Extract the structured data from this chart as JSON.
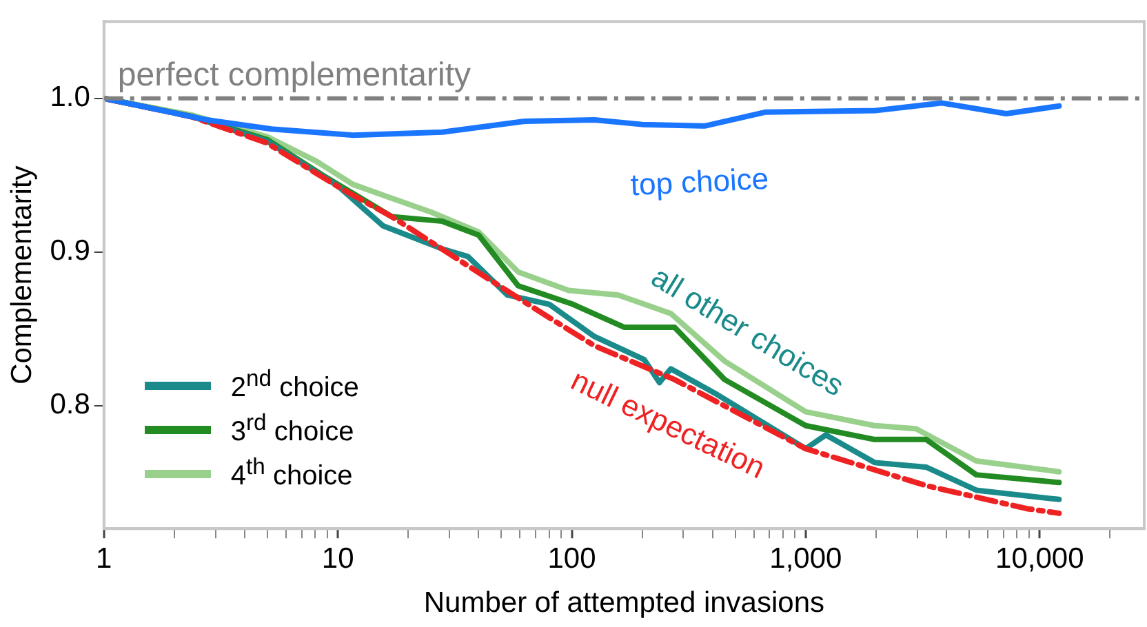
{
  "chart_data": {
    "type": "line",
    "xlabel": "Number of attempted invasions",
    "ylabel": "Complementarity",
    "log": "x",
    "grid": false,
    "marker": "none",
    "legend": "bottom left",
    "xlim": [
      1,
      28000
    ],
    "ylim": [
      0.72,
      1.05
    ],
    "xticks": [
      {
        "value": 1,
        "label": "1"
      },
      {
        "value": 2,
        "label": null
      },
      {
        "value": 3,
        "label": null
      },
      {
        "value": 4,
        "label": null
      },
      {
        "value": 5,
        "label": null
      },
      {
        "value": 6,
        "label": null
      },
      {
        "value": 7,
        "label": null
      },
      {
        "value": 8,
        "label": null
      },
      {
        "value": 9,
        "label": null
      },
      {
        "value": 10,
        "label": "10"
      },
      {
        "value": 20,
        "label": null
      },
      {
        "value": 30,
        "label": null
      },
      {
        "value": 40,
        "label": null
      },
      {
        "value": 50,
        "label": null
      },
      {
        "value": 60,
        "label": null
      },
      {
        "value": 70,
        "label": null
      },
      {
        "value": 80,
        "label": null
      },
      {
        "value": 90,
        "label": null
      },
      {
        "value": 100,
        "label": "100"
      },
      {
        "value": 200,
        "label": null
      },
      {
        "value": 300,
        "label": null
      },
      {
        "value": 400,
        "label": null
      },
      {
        "value": 500,
        "label": null
      },
      {
        "value": 600,
        "label": null
      },
      {
        "value": 700,
        "label": null
      },
      {
        "value": 800,
        "label": null
      },
      {
        "value": 900,
        "label": null
      },
      {
        "value": 1000,
        "label": "1,000"
      },
      {
        "value": 2000,
        "label": null
      },
      {
        "value": 3000,
        "label": null
      },
      {
        "value": 4000,
        "label": null
      },
      {
        "value": 5000,
        "label": null
      },
      {
        "value": 6000,
        "label": null
      },
      {
        "value": 7000,
        "label": null
      },
      {
        "value": 8000,
        "label": null
      },
      {
        "value": 9000,
        "label": null
      },
      {
        "value": 10000,
        "label": "10,000"
      },
      {
        "value": 20000,
        "label": null
      }
    ],
    "yticks": [
      {
        "value": 0.8,
        "label": "0.8"
      },
      {
        "value": 0.9,
        "label": "0.9"
      },
      {
        "value": 1.0,
        "label": "1.0"
      }
    ],
    "ref_lines": [
      {
        "axis": "y",
        "value": 1.0,
        "label": "perfect complementarity",
        "color": "#808080",
        "line_style": "dashed"
      }
    ],
    "annotations": [
      "all other choices"
    ],
    "series": [
      {
        "name": "top choice",
        "color": "#1a75ff",
        "x": [
          1,
          2.75,
          5.2,
          11.6,
          28,
          62,
          125,
          200,
          370,
          670,
          1970,
          3800,
          7200,
          12100
        ],
        "values": [
          1.0,
          0.986,
          0.98,
          0.976,
          0.978,
          0.985,
          0.986,
          0.983,
          0.982,
          0.991,
          0.992,
          0.997,
          0.99,
          0.995
        ]
      },
      {
        "name": "null expectation",
        "color": "#ee2222",
        "line_style": "dashed",
        "x": [
          1,
          2.37,
          4.97,
          10.4,
          17,
          36,
          75,
          125,
          275,
          1000,
          3270,
          8800,
          12100
        ],
        "values": [
          1.0,
          0.988,
          0.971,
          0.941,
          0.923,
          0.891,
          0.86,
          0.839,
          0.817,
          0.772,
          0.748,
          0.733,
          0.73
        ]
      },
      {
        "name": "2$^{nd}$ choice",
        "color": "#1a8a8a",
        "x": [
          1,
          2.4,
          5,
          10,
          15.6,
          28,
          36,
          53,
          80,
          125,
          204,
          237,
          265,
          410,
          1000,
          1220,
          1970,
          3270,
          5360,
          12100
        ],
        "values": [
          1.0,
          0.988,
          0.972,
          0.943,
          0.917,
          0.902,
          0.897,
          0.872,
          0.866,
          0.845,
          0.83,
          0.815,
          0.824,
          0.808,
          0.772,
          0.781,
          0.763,
          0.76,
          0.745,
          0.739
        ]
      },
      {
        "name": "3$^{rd}$ choice",
        "color": "#228b22",
        "x": [
          1,
          2.4,
          5,
          8.6,
          17,
          28,
          40,
          59,
          101,
          168,
          275,
          450,
          1000,
          1970,
          3270,
          5360,
          12100
        ],
        "values": [
          1.0,
          0.988,
          0.973,
          0.95,
          0.923,
          0.92,
          0.911,
          0.878,
          0.866,
          0.851,
          0.851,
          0.817,
          0.787,
          0.778,
          0.778,
          0.755,
          0.75
        ]
      },
      {
        "name": "4$^{th}$ choice",
        "color": "#98d08c",
        "x": [
          1,
          2.4,
          5,
          8.1,
          11.6,
          17,
          25,
          40,
          59,
          97,
          158,
          265,
          450,
          1000,
          1970,
          2960,
          5360,
          12100
        ],
        "values": [
          1.0,
          0.989,
          0.975,
          0.959,
          0.944,
          0.935,
          0.926,
          0.913,
          0.887,
          0.875,
          0.872,
          0.86,
          0.829,
          0.796,
          0.787,
          0.785,
          0.764,
          0.757
        ]
      }
    ]
  }
}
